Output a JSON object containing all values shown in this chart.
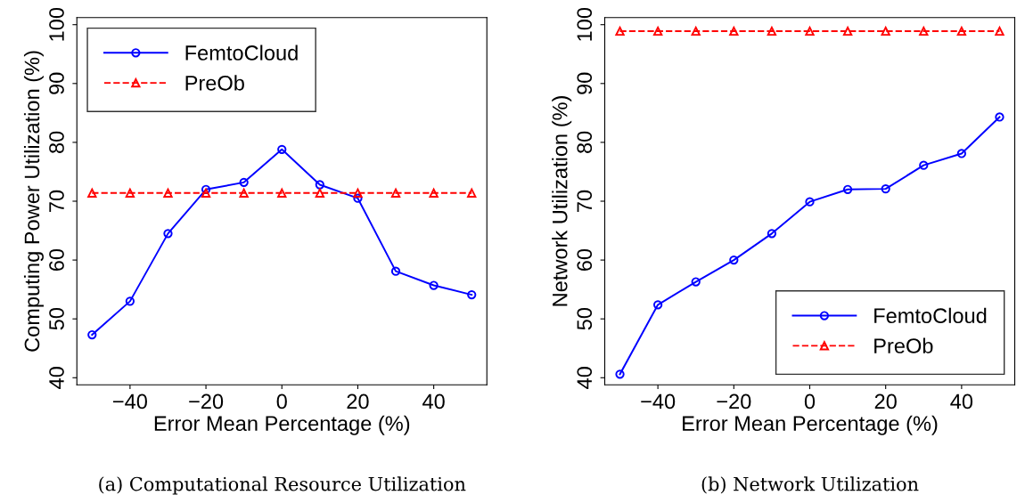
{
  "chart_data": [
    {
      "type": "line",
      "xlabel": "Error Mean Percentage (%)",
      "ylabel": "Computing Power Utilization (%)",
      "annotations": [
        "(a) Computational Resource Utilization"
      ],
      "x": [
        -50,
        -40,
        -30,
        -20,
        -10,
        0,
        10,
        20,
        30,
        40,
        50
      ],
      "series": [
        {
          "name": "FemtoCloud",
          "color": "#0000ff",
          "marker": "circle",
          "line_style": "solid",
          "values": [
            47.3,
            53.0,
            64.5,
            72.0,
            73.2,
            78.8,
            72.8,
            70.5,
            58.1,
            55.7,
            54.1
          ]
        },
        {
          "name": "PreOb",
          "color": "#ff0000",
          "marker": "triangle",
          "line_style": "dashed",
          "values": [
            71.4,
            71.4,
            71.4,
            71.4,
            71.4,
            71.4,
            71.4,
            71.4,
            71.4,
            71.4,
            71.4
          ]
        }
      ],
      "xlim": [
        -54,
        54
      ],
      "ylim": [
        38.8,
        101.2
      ],
      "xticks": [
        -40,
        -20,
        0,
        20,
        40
      ],
      "yticks": [
        40,
        50,
        60,
        70,
        80,
        90,
        100
      ],
      "legend": "top left",
      "grid": false
    },
    {
      "type": "line",
      "xlabel": "Error Mean Percentage (%)",
      "ylabel": "Network Utilization (%)",
      "annotations": [
        "(b) Network Utilization"
      ],
      "x": [
        -50,
        -40,
        -30,
        -20,
        -10,
        0,
        10,
        20,
        30,
        40,
        50
      ],
      "series": [
        {
          "name": "FemtoCloud",
          "color": "#0000ff",
          "marker": "circle",
          "line_style": "solid",
          "values": [
            40.6,
            52.4,
            56.3,
            60.0,
            64.5,
            69.9,
            72.0,
            72.1,
            76.1,
            78.1,
            84.3
          ]
        },
        {
          "name": "PreOb",
          "color": "#ff0000",
          "marker": "triangle",
          "line_style": "dashed",
          "values": [
            98.9,
            98.9,
            98.9,
            98.9,
            98.9,
            98.9,
            98.9,
            98.9,
            98.9,
            98.9,
            98.9
          ]
        }
      ],
      "xlim": [
        -54,
        54
      ],
      "ylim": [
        38.8,
        101.2
      ],
      "xticks": [
        -40,
        -20,
        0,
        20,
        40
      ],
      "yticks": [
        40,
        50,
        60,
        70,
        80,
        90,
        100
      ],
      "legend": "bottom right",
      "grid": false
    }
  ]
}
